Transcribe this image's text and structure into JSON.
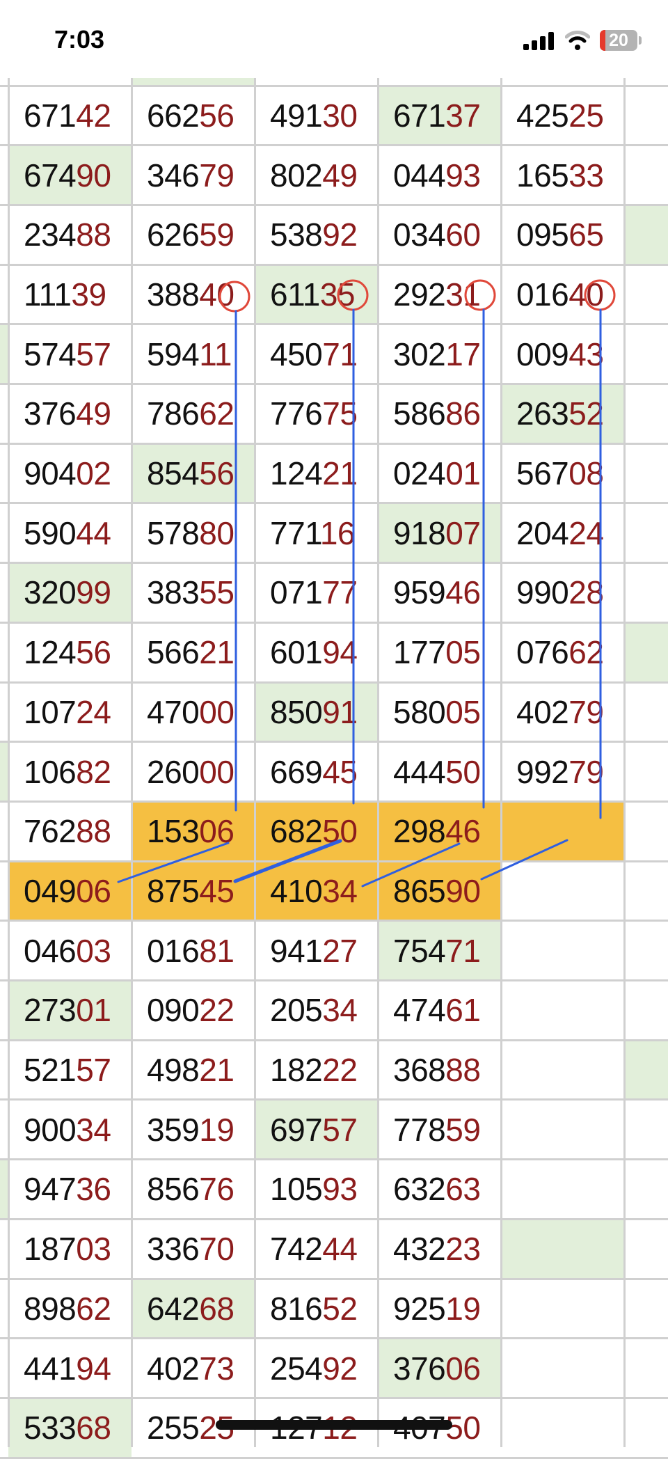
{
  "status_bar": {
    "time": "7:03",
    "battery": "20",
    "icons": [
      "signal-icon",
      "wifi-icon",
      "battery-icon"
    ]
  },
  "colors": {
    "green_fill": "#e2efda",
    "orange_fill": "#f5bf42",
    "tail_digits": "#8c1c1c",
    "annotation_line": "#2f5fe0",
    "annotation_circle": "#e0483a",
    "grid": "#d0d0d0"
  },
  "top_partial_row": {
    "green_columns": [
      2
    ]
  },
  "rows": [
    {
      "cells": [
        {
          "v": "67142"
        },
        {
          "v": "66256"
        },
        {
          "v": "49130"
        },
        {
          "v": "67137",
          "f": "green"
        },
        {
          "v": "42525"
        }
      ]
    },
    {
      "cells": [
        {
          "v": "67490",
          "f": "green"
        },
        {
          "v": "34679"
        },
        {
          "v": "80249"
        },
        {
          "v": "04493"
        },
        {
          "v": "16533"
        }
      ]
    },
    {
      "right_green": true,
      "cells": [
        {
          "v": "23488"
        },
        {
          "v": "62659"
        },
        {
          "v": "53892"
        },
        {
          "v": "03460"
        },
        {
          "v": "09565"
        }
      ]
    },
    {
      "cells": [
        {
          "v": "11139"
        },
        {
          "v": "38840",
          "circled": true
        },
        {
          "v": "61135",
          "f": "green",
          "circled": true
        },
        {
          "v": "29231",
          "circled": true
        },
        {
          "v": "01640",
          "circled": true
        }
      ]
    },
    {
      "left_green": true,
      "cells": [
        {
          "v": "57457"
        },
        {
          "v": "59411"
        },
        {
          "v": "45071"
        },
        {
          "v": "30217"
        },
        {
          "v": "00943"
        }
      ]
    },
    {
      "cells": [
        {
          "v": "37649"
        },
        {
          "v": "78662"
        },
        {
          "v": "77675"
        },
        {
          "v": "58686"
        },
        {
          "v": "26352",
          "f": "green"
        }
      ]
    },
    {
      "cells": [
        {
          "v": "90402"
        },
        {
          "v": "85456",
          "f": "green"
        },
        {
          "v": "12421"
        },
        {
          "v": "02401"
        },
        {
          "v": "56708"
        }
      ]
    },
    {
      "cells": [
        {
          "v": "59044"
        },
        {
          "v": "57880"
        },
        {
          "v": "77116"
        },
        {
          "v": "91807",
          "f": "green"
        },
        {
          "v": "20424"
        }
      ]
    },
    {
      "cells": [
        {
          "v": "32099",
          "f": "green"
        },
        {
          "v": "38355"
        },
        {
          "v": "07177"
        },
        {
          "v": "95946"
        },
        {
          "v": "99028"
        }
      ]
    },
    {
      "right_green": true,
      "cells": [
        {
          "v": "12456"
        },
        {
          "v": "56621"
        },
        {
          "v": "60194"
        },
        {
          "v": "17705"
        },
        {
          "v": "07662"
        }
      ]
    },
    {
      "cells": [
        {
          "v": "10724"
        },
        {
          "v": "47000"
        },
        {
          "v": "85091",
          "f": "green"
        },
        {
          "v": "58005"
        },
        {
          "v": "40279"
        }
      ]
    },
    {
      "left_green": true,
      "cells": [
        {
          "v": "10682"
        },
        {
          "v": "26000"
        },
        {
          "v": "66945"
        },
        {
          "v": "44450"
        },
        {
          "v": "99279"
        }
      ]
    },
    {
      "cells": [
        {
          "v": "76288"
        },
        {
          "v": "15306",
          "f": "orange"
        },
        {
          "v": "68250",
          "f": "orange"
        },
        {
          "v": "29846",
          "f": "orange"
        },
        {
          "v": "",
          "f": "orange"
        }
      ]
    },
    {
      "cells": [
        {
          "v": "04906",
          "f": "orange"
        },
        {
          "v": "87545",
          "f": "orange"
        },
        {
          "v": "41034",
          "f": "orange"
        },
        {
          "v": "86590",
          "f": "orange"
        },
        {
          "v": ""
        }
      ]
    },
    {
      "cells": [
        {
          "v": "04603"
        },
        {
          "v": "01681"
        },
        {
          "v": "94127"
        },
        {
          "v": "75471",
          "f": "green"
        },
        {
          "v": ""
        }
      ]
    },
    {
      "cells": [
        {
          "v": "27301",
          "f": "green"
        },
        {
          "v": "09022"
        },
        {
          "v": "20534"
        },
        {
          "v": "47461"
        },
        {
          "v": ""
        }
      ]
    },
    {
      "right_green": true,
      "cells": [
        {
          "v": "52157"
        },
        {
          "v": "49821"
        },
        {
          "v": "18222"
        },
        {
          "v": "36888"
        },
        {
          "v": ""
        }
      ]
    },
    {
      "cells": [
        {
          "v": "90034"
        },
        {
          "v": "35919"
        },
        {
          "v": "69757",
          "f": "green"
        },
        {
          "v": "77859"
        },
        {
          "v": ""
        }
      ]
    },
    {
      "left_green": true,
      "cells": [
        {
          "v": "94736"
        },
        {
          "v": "85676"
        },
        {
          "v": "10593"
        },
        {
          "v": "63263"
        },
        {
          "v": ""
        }
      ]
    },
    {
      "cells": [
        {
          "v": "18703"
        },
        {
          "v": "33670"
        },
        {
          "v": "74244"
        },
        {
          "v": "43223"
        },
        {
          "v": "",
          "f": "green"
        }
      ]
    },
    {
      "cells": [
        {
          "v": "89862"
        },
        {
          "v": "64268",
          "f": "green"
        },
        {
          "v": "81652"
        },
        {
          "v": "92519"
        },
        {
          "v": ""
        }
      ]
    },
    {
      "cells": [
        {
          "v": "44194"
        },
        {
          "v": "40273"
        },
        {
          "v": "25492"
        },
        {
          "v": "37606",
          "f": "green"
        },
        {
          "v": ""
        }
      ]
    },
    {
      "cells": [
        {
          "v": "53368",
          "f": "green"
        },
        {
          "v": "25525"
        },
        {
          "v": "12712"
        },
        {
          "v": "40750"
        },
        {
          "v": ""
        }
      ]
    }
  ]
}
